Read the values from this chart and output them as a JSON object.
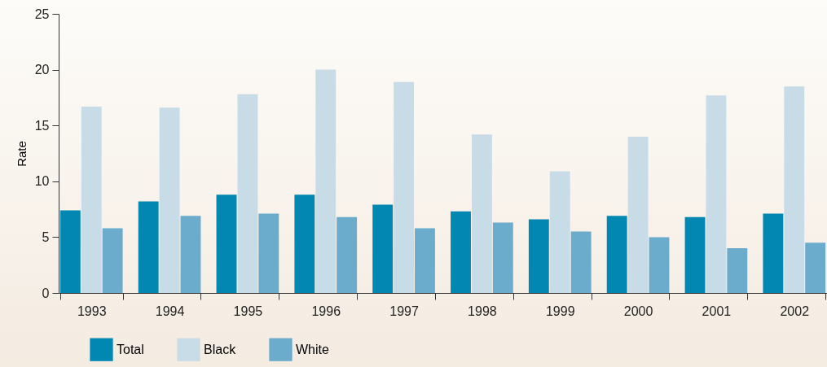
{
  "chart_data": {
    "type": "bar",
    "ylabel": "Rate",
    "categories": [
      "1993",
      "1994",
      "1995",
      "1996",
      "1997",
      "1998",
      "1999",
      "2000",
      "2001",
      "2002"
    ],
    "series": [
      {
        "name": "Total",
        "color": "#0287b2",
        "values": [
          7.4,
          8.2,
          8.8,
          8.8,
          7.9,
          7.3,
          6.6,
          6.9,
          6.8,
          7.1
        ]
      },
      {
        "name": "Black",
        "color": "#c7dce7",
        "values": [
          16.7,
          16.6,
          17.8,
          20.0,
          18.9,
          14.2,
          10.9,
          14.0,
          17.7,
          18.5
        ]
      },
      {
        "name": "White",
        "color": "#6babcc",
        "values": [
          5.8,
          6.9,
          7.1,
          6.8,
          5.8,
          6.3,
          5.5,
          5.0,
          4.0,
          4.5
        ]
      }
    ],
    "ylim": [
      0,
      25
    ],
    "yticks": [
      0,
      5,
      10,
      15,
      20,
      25
    ],
    "grid": false,
    "legend": "bottom left"
  }
}
